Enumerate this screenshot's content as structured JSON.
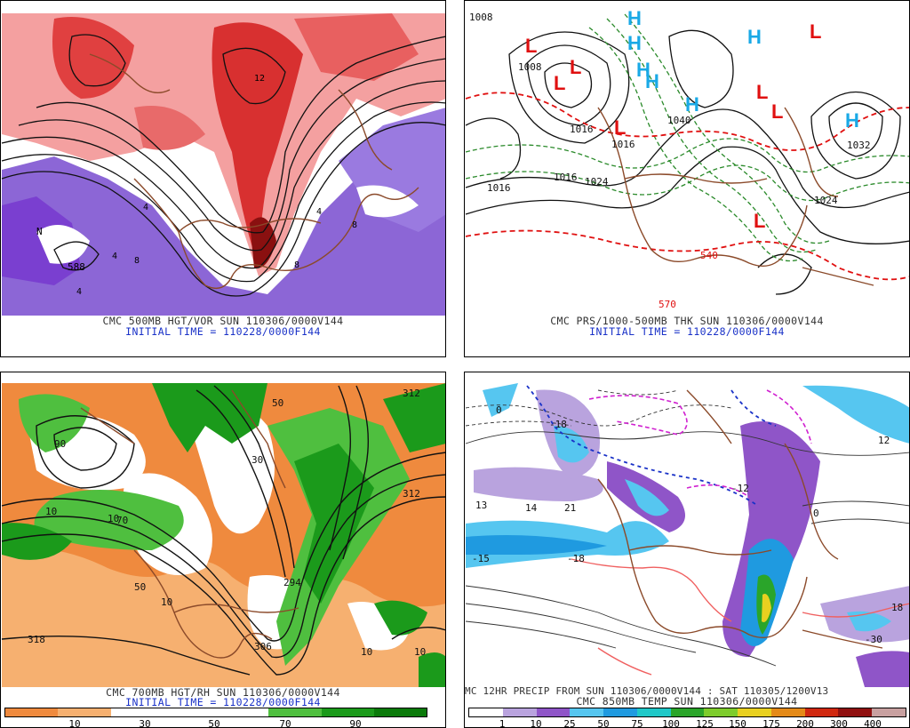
{
  "panels": {
    "top_left": {
      "caption1": "CMC 500MB HGT/VOR SUN 110306/0000V144",
      "caption2": "INITIAL TIME = 110228/0000F144",
      "labels": [
        "588",
        "N",
        "4",
        "8",
        "4",
        "8",
        "4",
        "8",
        "4",
        "12"
      ]
    },
    "top_right": {
      "caption1": "CMC PRS/1000-500MB THK SUN 110306/0000V144",
      "caption2": "INITIAL TIME = 110228/0000F144",
      "isobars": [
        "1008",
        "1008",
        "1016",
        "1016",
        "1016",
        "1024",
        "1032",
        "1024",
        "1040",
        "1016"
      ],
      "thickness": [
        "540",
        "570"
      ],
      "highs": [
        "H",
        "H",
        "H",
        "H",
        "H",
        "H",
        "H"
      ],
      "lows": [
        "L",
        "L",
        "L",
        "L",
        "L",
        "L",
        "L",
        "L"
      ],
      "colors": {
        "high": "#19a9e6",
        "low": "#e01010"
      }
    },
    "bottom_left": {
      "caption1": "CMC 700MB HGT/RH SUN 110306/0000V144",
      "caption2": "INITIAL TIME = 110228/0000F144",
      "labels": [
        "312",
        "312",
        "318",
        "306",
        "294",
        "30",
        "50",
        "10",
        "70",
        "10",
        "50",
        "10",
        "10",
        "90",
        "10"
      ],
      "rh_scale": {
        "labels": [
          "10",
          "30",
          "50",
          "70",
          "90"
        ],
        "colors": [
          "#ef8a3e",
          "#f6b070",
          "#ffffff",
          "#ffffff",
          "#ffffff",
          "#4fbf3f",
          "#1b9a1b",
          "#0a7a0a"
        ]
      }
    },
    "bottom_right": {
      "caption1": "MC 12HR PRECIP FROM SUN 110306/0000V144 : SAT 110305/1200V13",
      "caption2": "CMC 850MB TEMP SUN 110306/0000V144",
      "labels": [
        "0",
        "-18",
        "13",
        "14",
        "21",
        "-15",
        "-18",
        "18",
        "0",
        "-30",
        "-12",
        "12"
      ],
      "precip_scale": {
        "labels": [
          "1",
          "10",
          "25",
          "50",
          "75",
          "100",
          "125",
          "150",
          "175",
          "200",
          "300",
          "400"
        ],
        "colors": [
          "#ffffff",
          "#b9a3de",
          "#8f55c8",
          "#56c6f0",
          "#1f9ae0",
          "#1fc8c8",
          "#2aa52a",
          "#7dcc2c",
          "#e8d020",
          "#e48a18",
          "#d02810",
          "#901010",
          "#c8a0a0"
        ]
      }
    }
  }
}
